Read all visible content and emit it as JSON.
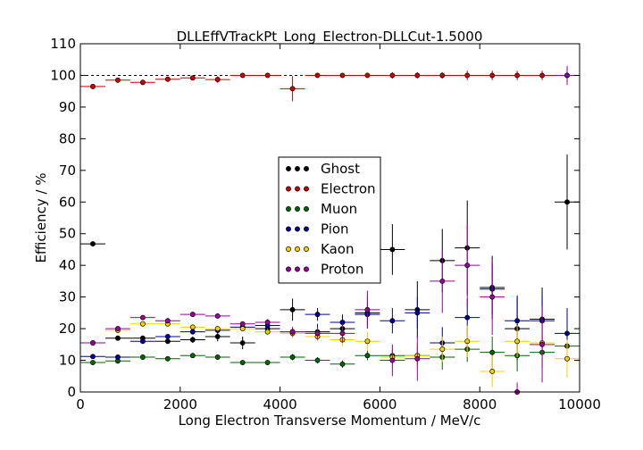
{
  "chart_data": {
    "type": "scatter",
    "title": "DLLEffVTrackPt_Long_Electron-DLLCut-1.5000",
    "xlabel": "Long Electron Transverse Momentum / MeV/c",
    "ylabel": "Efficiency / %",
    "xlim": [
      0,
      10000
    ],
    "ylim": [
      0,
      110
    ],
    "xticks": [
      "0",
      "2000",
      "4000",
      "6000",
      "8000",
      "10000"
    ],
    "yticks": [
      "0",
      "10",
      "20",
      "30",
      "40",
      "50",
      "60",
      "70",
      "80",
      "90",
      "100",
      "110"
    ],
    "bin_half_width": 250,
    "reference_line": 100,
    "legend_position": "center",
    "series": [
      {
        "name": "Ghost",
        "color": "#000000",
        "points": [
          [
            250,
            46.8,
            0.4
          ],
          [
            750,
            17,
            0.8
          ],
          [
            1250,
            17,
            0.8
          ],
          [
            1750,
            16,
            0.8
          ],
          [
            2250,
            16.5,
            1
          ],
          [
            2750,
            17.5,
            1.5
          ],
          [
            3250,
            15.5,
            2
          ],
          [
            3750,
            20,
            1.5
          ],
          [
            4250,
            26,
            3.5
          ],
          [
            4750,
            19,
            2.5
          ],
          [
            5250,
            20,
            3
          ],
          [
            5750,
            25,
            5
          ],
          [
            6250,
            45,
            8
          ],
          [
            6750,
            26,
            9
          ],
          [
            7250,
            41.5,
            10
          ],
          [
            7750,
            45.5,
            15
          ],
          [
            8250,
            33,
            10
          ],
          [
            8750,
            20,
            10
          ],
          [
            9250,
            23,
            10
          ],
          [
            9750,
            60,
            15
          ]
        ]
      },
      {
        "name": "Electron",
        "color": "#cc0000",
        "points": [
          [
            250,
            96.5,
            0.4
          ],
          [
            750,
            98.5,
            0.4
          ],
          [
            1250,
            97.8,
            0.6
          ],
          [
            1750,
            98.8,
            0.6
          ],
          [
            2250,
            99.2,
            0.6
          ],
          [
            2750,
            98.7,
            1
          ],
          [
            3250,
            100,
            0.4
          ],
          [
            3750,
            100,
            0.4
          ],
          [
            4250,
            95.8,
            4
          ],
          [
            4750,
            100,
            0.4
          ],
          [
            5250,
            100,
            0.4
          ],
          [
            5750,
            100,
            0.4
          ],
          [
            6250,
            100,
            1
          ],
          [
            6750,
            100,
            1
          ],
          [
            7250,
            100,
            1
          ],
          [
            7750,
            100,
            1.5
          ],
          [
            8250,
            100,
            1.5
          ],
          [
            8750,
            100,
            1.5
          ],
          [
            9250,
            100,
            1.5
          ],
          [
            9750,
            100,
            2
          ]
        ]
      },
      {
        "name": "Muon",
        "color": "#006600",
        "points": [
          [
            250,
            9.3,
            0.4
          ],
          [
            750,
            9.8,
            0.5
          ],
          [
            1250,
            11,
            0.5
          ],
          [
            1750,
            10.5,
            0.5
          ],
          [
            2250,
            11.5,
            0.5
          ],
          [
            2750,
            11,
            0.6
          ],
          [
            3250,
            9.3,
            0.6
          ],
          [
            3750,
            9.3,
            0.8
          ],
          [
            4250,
            11,
            1
          ],
          [
            4750,
            10,
            1
          ],
          [
            5250,
            8.8,
            1.2
          ],
          [
            5750,
            11.5,
            1.5
          ],
          [
            6250,
            11.5,
            2
          ],
          [
            6750,
            11.5,
            3
          ],
          [
            7250,
            11,
            4
          ],
          [
            7750,
            13.5,
            4
          ],
          [
            8250,
            12.5,
            5
          ],
          [
            8750,
            11.5,
            5
          ],
          [
            9250,
            12.5,
            5
          ],
          [
            9750,
            14.5,
            5
          ]
        ]
      },
      {
        "name": "Pion",
        "color": "#000099",
        "points": [
          [
            250,
            11.2,
            0.4
          ],
          [
            750,
            11,
            0.5
          ],
          [
            1250,
            16,
            0.6
          ],
          [
            1750,
            17.5,
            0.6
          ],
          [
            2250,
            19,
            0.7
          ],
          [
            2750,
            19.5,
            0.8
          ],
          [
            3250,
            20.5,
            1
          ],
          [
            3750,
            21,
            1.2
          ],
          [
            4250,
            19,
            1.5
          ],
          [
            4750,
            24.5,
            2
          ],
          [
            5250,
            22,
            2.5
          ],
          [
            5750,
            24.5,
            3
          ],
          [
            6250,
            22.5,
            4
          ],
          [
            6750,
            25,
            5
          ],
          [
            7250,
            15.5,
            5
          ],
          [
            7750,
            23.5,
            6
          ],
          [
            8250,
            32.5,
            8
          ],
          [
            8750,
            22.5,
            8
          ],
          [
            9250,
            22.5,
            8
          ],
          [
            9750,
            18.5,
            8
          ]
        ]
      },
      {
        "name": "Kaon",
        "color": "#ffcc00",
        "points": [
          [
            250,
            15.5,
            0.6
          ],
          [
            750,
            19.5,
            0.6
          ],
          [
            1250,
            21.5,
            0.6
          ],
          [
            1750,
            21.5,
            0.6
          ],
          [
            2250,
            20.5,
            0.7
          ],
          [
            2750,
            20,
            0.8
          ],
          [
            3250,
            20,
            0.9
          ],
          [
            3750,
            19,
            1
          ],
          [
            4250,
            18.5,
            1.5
          ],
          [
            4750,
            17.5,
            1.5
          ],
          [
            5250,
            16.5,
            2
          ],
          [
            5750,
            16,
            3
          ],
          [
            6250,
            11,
            3
          ],
          [
            6750,
            11.5,
            4
          ],
          [
            7250,
            13.5,
            4
          ],
          [
            7750,
            16,
            5
          ],
          [
            8250,
            6.5,
            5
          ],
          [
            8750,
            16,
            5
          ],
          [
            9250,
            15.5,
            6
          ],
          [
            9750,
            10.5,
            6
          ]
        ]
      },
      {
        "name": "Proton",
        "color": "#990099",
        "points": [
          [
            250,
            15.5,
            0.5
          ],
          [
            750,
            20,
            0.5
          ],
          [
            1250,
            23.5,
            0.6
          ],
          [
            1750,
            22.5,
            0.6
          ],
          [
            2250,
            24.5,
            0.6
          ],
          [
            2750,
            24,
            0.7
          ],
          [
            3250,
            21.5,
            0.8
          ],
          [
            3750,
            22,
            1
          ],
          [
            4250,
            19,
            1.5
          ],
          [
            4750,
            18.5,
            2
          ],
          [
            5250,
            18.5,
            3
          ],
          [
            5750,
            26,
            6
          ],
          [
            6250,
            10,
            5
          ],
          [
            6750,
            10.5,
            7
          ],
          [
            7250,
            35,
            10
          ],
          [
            7750,
            40,
            13
          ],
          [
            8250,
            30,
            12
          ],
          [
            8750,
            0,
            3
          ],
          [
            9250,
            15,
            12
          ],
          [
            9750,
            100,
            3
          ]
        ]
      }
    ]
  }
}
